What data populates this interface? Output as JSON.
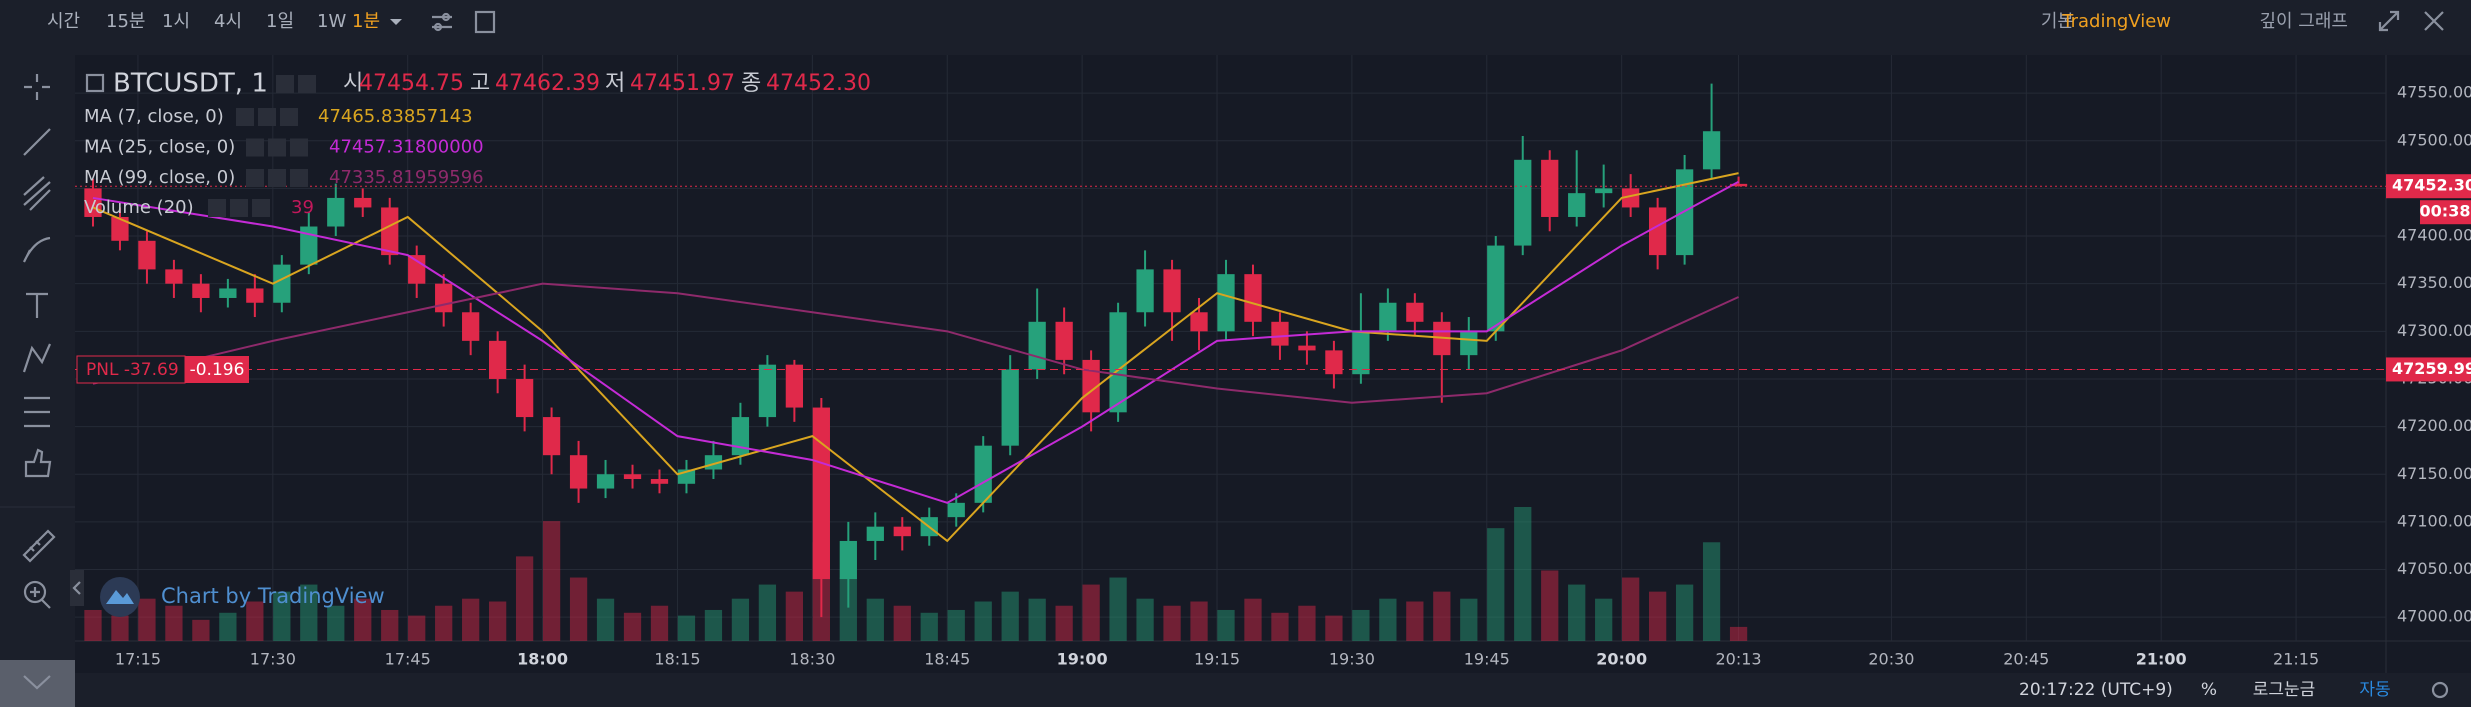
{
  "toolbar": {
    "intervals": [
      "시간",
      "15분",
      "1시",
      "4시",
      "1일",
      "1W"
    ],
    "active_interval": "1분",
    "views": [
      "기본",
      "TradingView",
      "깊이 그래프"
    ]
  },
  "legend": {
    "symbol": "BTCUSDT, 1",
    "ohlc": [
      {
        "label": "시",
        "value": "47454.75"
      },
      {
        "label": "고",
        "value": "47462.39"
      },
      {
        "label": "저",
        "value": "47451.97"
      },
      {
        "label": "종",
        "value": "47452.30"
      }
    ],
    "volume_name": "Volume (20)",
    "volume_last": "39"
  },
  "position": {
    "pnl": "PNL -37.69",
    "pnl_pct": "-0.196"
  },
  "watermark": "Chart by TradingView",
  "status": {
    "time": "20:17:22 (UTC+9)",
    "percent": "%",
    "log": "로그눈금",
    "auto": "자동"
  },
  "chart_data": {
    "type": "candlestick",
    "x": [
      1030,
      1033,
      1036,
      1039,
      1042,
      1045,
      1048,
      1051,
      1054,
      1057,
      1060,
      1063,
      1066,
      1069,
      1072,
      1075,
      1078,
      1081,
      1084,
      1087,
      1090,
      1093,
      1096,
      1099,
      1102,
      1105,
      1108,
      1111,
      1114,
      1117,
      1120,
      1123,
      1126,
      1129,
      1132,
      1135,
      1138,
      1141,
      1144,
      1147,
      1150,
      1153,
      1156,
      1159,
      1162,
      1165,
      1168,
      1171,
      1174,
      1177,
      1180,
      1183,
      1186,
      1189,
      1192,
      1195,
      1198,
      1201,
      1204,
      1207,
      1210,
      1213
    ],
    "open": [
      47450,
      47420,
      47395,
      47365,
      47350,
      47335,
      47345,
      47330,
      47370,
      47410,
      47440,
      47430,
      47380,
      47350,
      47320,
      47290,
      47250,
      47210,
      47170,
      47135,
      47150,
      47145,
      47140,
      47155,
      47170,
      47210,
      47265,
      47220,
      47040,
      47080,
      47095,
      47085,
      47105,
      47120,
      47180,
      47260,
      47310,
      47270,
      47215,
      47320,
      47365,
      47320,
      47300,
      47360,
      47310,
      47285,
      47280,
      47255,
      47300,
      47330,
      47310,
      47275,
      47300,
      47390,
      47480,
      47420,
      47445,
      47450,
      47430,
      47380,
      47470,
      47454.75
    ],
    "high": [
      47460,
      47430,
      47405,
      47375,
      47360,
      47355,
      47360,
      47380,
      47425,
      47455,
      47450,
      47440,
      47390,
      47360,
      47330,
      47300,
      47265,
      47220,
      47185,
      47165,
      47160,
      47155,
      47165,
      47185,
      47225,
      47275,
      47270,
      47230,
      47100,
      47110,
      47105,
      47115,
      47130,
      47190,
      47275,
      47345,
      47325,
      47280,
      47330,
      47385,
      47375,
      47335,
      47375,
      47370,
      47320,
      47300,
      47290,
      47340,
      47345,
      47340,
      47320,
      47315,
      47400,
      47505,
      47490,
      47490,
      47475,
      47465,
      47440,
      47485,
      47560,
      47462.39
    ],
    "low": [
      47410,
      47385,
      47350,
      47335,
      47320,
      47325,
      47315,
      47320,
      47360,
      47400,
      47420,
      47370,
      47335,
      47305,
      47275,
      47235,
      47195,
      47150,
      47120,
      47125,
      47135,
      47130,
      47130,
      47145,
      47160,
      47200,
      47205,
      47000,
      47010,
      47060,
      47070,
      47075,
      47095,
      47110,
      47170,
      47250,
      47255,
      47195,
      47205,
      47305,
      47290,
      47280,
      47290,
      47295,
      47270,
      47265,
      47240,
      47245,
      47290,
      47295,
      47225,
      47260,
      47290,
      47380,
      47405,
      47410,
      47430,
      47420,
      47365,
      47370,
      47460,
      47451.97
    ],
    "close": [
      47420,
      47395,
      47365,
      47350,
      47335,
      47345,
      47330,
      47370,
      47410,
      47440,
      47430,
      47380,
      47350,
      47320,
      47290,
      47250,
      47210,
      47170,
      47135,
      47150,
      47145,
      47140,
      47155,
      47170,
      47210,
      47265,
      47220,
      47040,
      47080,
      47095,
      47085,
      47105,
      47120,
      47180,
      47260,
      47310,
      47270,
      47215,
      47320,
      47365,
      47320,
      47300,
      47360,
      47310,
      47285,
      47280,
      47255,
      47300,
      47330,
      47310,
      47275,
      47300,
      47390,
      47480,
      47420,
      47445,
      47450,
      47430,
      47380,
      47470,
      47510,
      47452.3
    ],
    "volume": [
      22,
      18,
      30,
      25,
      15,
      20,
      28,
      35,
      40,
      25,
      30,
      22,
      18,
      25,
      30,
      28,
      60,
      85,
      45,
      30,
      20,
      25,
      18,
      22,
      30,
      40,
      35,
      70,
      45,
      30,
      25,
      20,
      22,
      28,
      35,
      30,
      25,
      40,
      45,
      30,
      25,
      28,
      22,
      30,
      20,
      25,
      18,
      22,
      30,
      28,
      35,
      30,
      80,
      95,
      50,
      40,
      30,
      45,
      35,
      40,
      70,
      10
    ],
    "up_color": "#26a17b",
    "down_color": "#e0294a",
    "series": [
      {
        "name": "MA (7, close, 0)",
        "color": "#d9a520",
        "last": "47465.83857143",
        "x": [
          1030,
          1050,
          1065,
          1080,
          1095,
          1110,
          1125,
          1140,
          1155,
          1170,
          1185,
          1200,
          1213
        ],
        "values": [
          47430,
          47350,
          47420,
          47300,
          47150,
          47190,
          47080,
          47230,
          47340,
          47300,
          47290,
          47440,
          47466
        ]
      },
      {
        "name": "MA (25, close, 0)",
        "color": "#c42bd6",
        "last": "47457.31800000",
        "x": [
          1030,
          1050,
          1065,
          1080,
          1095,
          1110,
          1125,
          1140,
          1155,
          1170,
          1185,
          1200,
          1213
        ],
        "values": [
          47440,
          47410,
          47380,
          47290,
          47190,
          47165,
          47120,
          47200,
          47290,
          47300,
          47300,
          47390,
          47457
        ]
      },
      {
        "name": "MA (99, close, 0)",
        "color": "#8e2a6b",
        "last": "47335.81959596",
        "x": [
          1030,
          1050,
          1065,
          1080,
          1095,
          1110,
          1125,
          1140,
          1155,
          1170,
          1185,
          1200,
          1213
        ],
        "values": [
          47245,
          47290,
          47320,
          47350,
          47340,
          47320,
          47300,
          47260,
          47240,
          47225,
          47235,
          47280,
          47336
        ]
      }
    ],
    "xlim": [
      1028,
      1285
    ],
    "xticks": [
      {
        "value": 1035,
        "label": "17:15"
      },
      {
        "value": 1050,
        "label": "17:30"
      },
      {
        "value": 1065,
        "label": "17:45"
      },
      {
        "value": 1080,
        "label": "18:00"
      },
      {
        "value": 1095,
        "label": "18:15"
      },
      {
        "value": 1110,
        "label": "18:30"
      },
      {
        "value": 1125,
        "label": "18:45"
      },
      {
        "value": 1140,
        "label": "19:00"
      },
      {
        "value": 1155,
        "label": "19:15"
      },
      {
        "value": 1170,
        "label": "19:30"
      },
      {
        "value": 1185,
        "label": "19:45"
      },
      {
        "value": 1200,
        "label": "20:00"
      },
      {
        "value": 1213,
        "label": "20:13"
      },
      {
        "value": 1230,
        "label": "20:30"
      },
      {
        "value": 1245,
        "label": "20:45"
      },
      {
        "value": 1260,
        "label": "21:00"
      },
      {
        "value": 1275,
        "label": "21:15"
      }
    ],
    "ylim": [
      46975,
      47590
    ],
    "yticks": [
      {
        "value": 47000,
        "label": "47000.00"
      },
      {
        "value": 47050,
        "label": "47050.00"
      },
      {
        "value": 47100,
        "label": "47100.00"
      },
      {
        "value": 47150,
        "label": "47150.00"
      },
      {
        "value": 47200,
        "label": "47200.00"
      },
      {
        "value": 47250,
        "label": "47250.00"
      },
      {
        "value": 47300,
        "label": "47300.00"
      },
      {
        "value": 47350,
        "label": "47350.00"
      },
      {
        "value": 47400,
        "label": "47400.00"
      },
      {
        "value": 47450,
        "label": "47450.00"
      },
      {
        "value": 47500,
        "label": "47500.00"
      },
      {
        "value": 47550,
        "label": "47550.00"
      }
    ],
    "grid": true,
    "last_price": {
      "value": 47452.3,
      "label": "47452.30"
    },
    "countdown": "00:38",
    "entry_price": 47259.99
  }
}
